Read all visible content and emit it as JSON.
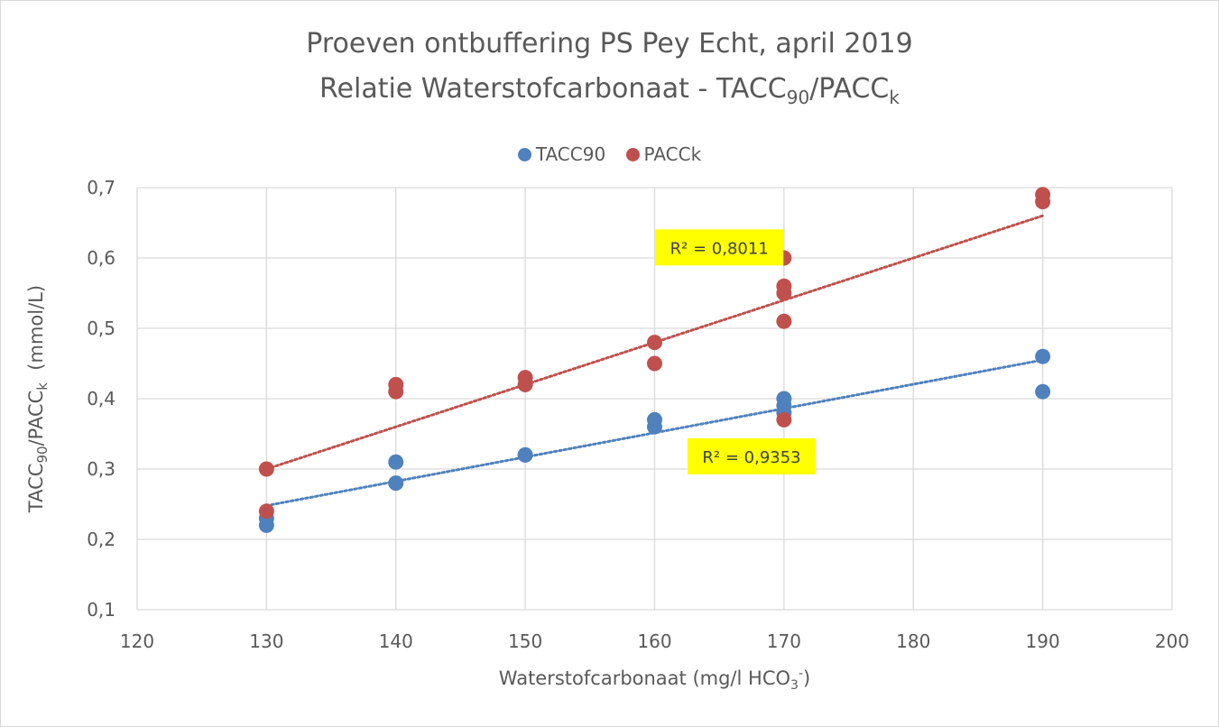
{
  "chart_data": {
    "type": "scatter",
    "title_line1": "Proeven ontbuffering PS Pey Echt, april 2019",
    "title_line2_prefix": "Relatie Waterstofcarbonaat - TACC",
    "title_line2_sub1": "90",
    "title_line2_mid": "/PACC",
    "title_line2_sub2": "k",
    "ylabel_a": "TACC",
    "ylabel_sub1": "90",
    "ylabel_b": "/PACC",
    "ylabel_sub2": "k",
    "ylabel_c": "  (mmol/L)",
    "xlabel_main": "Waterstofcarbonaat (mg/l HCO",
    "xlabel_sub": "3",
    "xlabel_sup": "-",
    "xlabel_end": ")",
    "xlim": [
      120,
      200
    ],
    "ylim": [
      0.1,
      0.7
    ],
    "xticks": [
      120,
      130,
      140,
      150,
      160,
      170,
      180,
      190,
      200
    ],
    "yticks": [
      0.1,
      0.2,
      0.3,
      0.4,
      0.5,
      0.6,
      0.7
    ],
    "ytick_labels": [
      "0,1",
      "0,2",
      "0,3",
      "0,4",
      "0,5",
      "0,6",
      "0,7"
    ],
    "grid": true,
    "legend_position": "top",
    "series": [
      {
        "name": "TACC90",
        "color": "#4f81bd",
        "points": [
          [
            130,
            0.22
          ],
          [
            130,
            0.23
          ],
          [
            140,
            0.31
          ],
          [
            140,
            0.28
          ],
          [
            150,
            0.32
          ],
          [
            150,
            0.32
          ],
          [
            160,
            0.37
          ],
          [
            160,
            0.36
          ],
          [
            170,
            0.4
          ],
          [
            170,
            0.39
          ],
          [
            170,
            0.38
          ],
          [
            190,
            0.46
          ],
          [
            190,
            0.41
          ]
        ],
        "trendline": {
          "x": [
            130,
            190
          ],
          "y": [
            0.248,
            0.455
          ],
          "r2_label": "R² = 0,9353"
        }
      },
      {
        "name": "PACCk",
        "color": "#c0504d",
        "points": [
          [
            130,
            0.3
          ],
          [
            130,
            0.24
          ],
          [
            140,
            0.42
          ],
          [
            140,
            0.41
          ],
          [
            150,
            0.43
          ],
          [
            150,
            0.42
          ],
          [
            160,
            0.48
          ],
          [
            160,
            0.45
          ],
          [
            170,
            0.6
          ],
          [
            170,
            0.56
          ],
          [
            170,
            0.55
          ],
          [
            170,
            0.51
          ],
          [
            170,
            0.37
          ],
          [
            190,
            0.69
          ],
          [
            190,
            0.68
          ]
        ],
        "trendline": {
          "x": [
            130,
            190
          ],
          "y": [
            0.3,
            0.66
          ],
          "r2_label": "R² = 0,8011"
        }
      }
    ],
    "annotations": [
      {
        "text": "R² = 0,8011",
        "x": 165,
        "y": 0.615,
        "background": "#ffff00"
      },
      {
        "text": "R² = 0,9353",
        "x": 167.5,
        "y": 0.318,
        "background": "#ffff00"
      }
    ]
  }
}
